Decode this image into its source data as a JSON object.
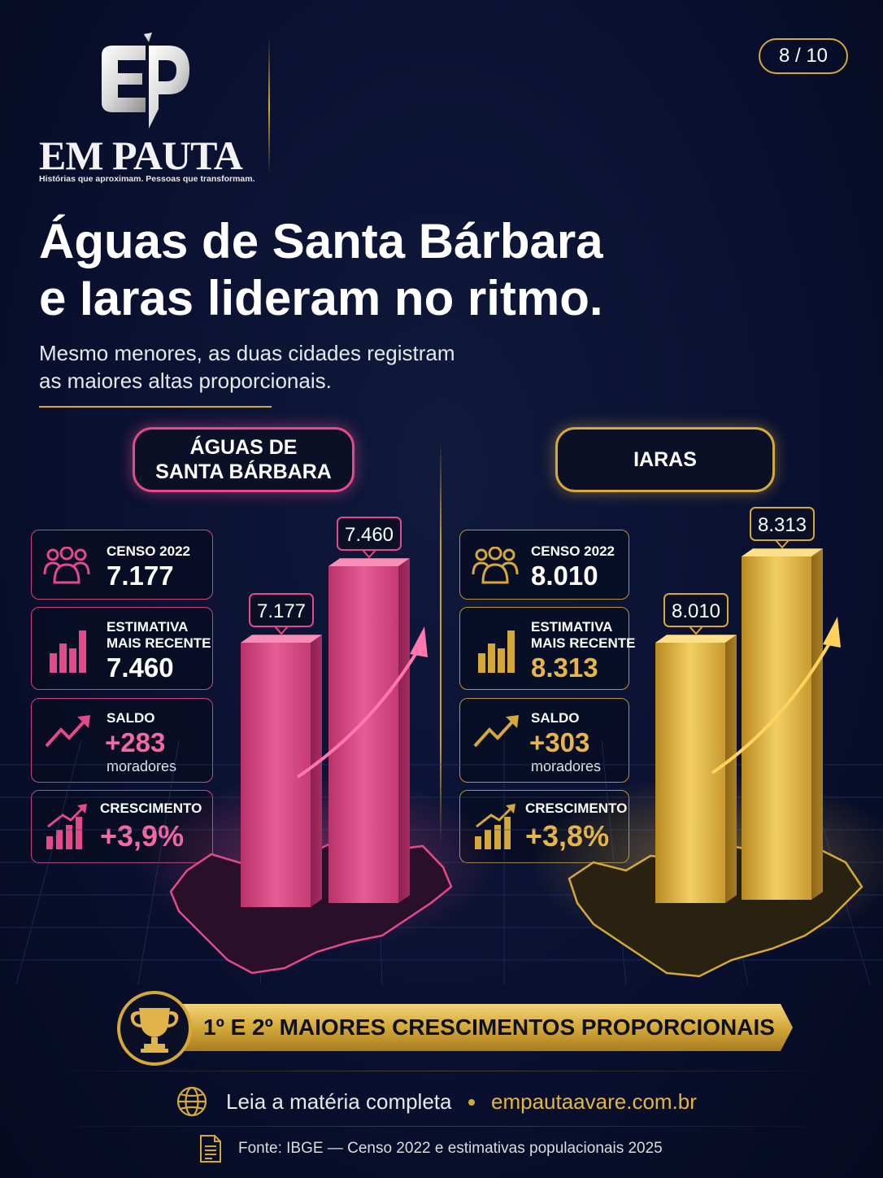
{
  "brand": {
    "name": "EM PAUTA",
    "tagline": "Histórias que aproximam. Pessoas que transformam."
  },
  "page_indicator": "8 / 10",
  "headline": {
    "line1": "Águas de Santa Bárbara",
    "line2": "e Iaras lideram no ritmo."
  },
  "subheadline": {
    "line1": "Mesmo menores, as duas cidades registram",
    "line2": "as maiores altas proporcionais."
  },
  "cities": [
    {
      "name_line1": "ÁGUAS DE",
      "name_line2": "SANTA BÁRBARA",
      "accent": "#e24a8a",
      "censo_label": "CENSO 2022",
      "censo_value": "7.177",
      "estimate_label_line1": "ESTIMATIVA",
      "estimate_label_line2": "MAIS RECENTE",
      "estimate_value": "7.460",
      "saldo_label": "SALDO",
      "saldo_value": "+283",
      "saldo_unit": "moradores",
      "growth_label": "CRESCIMENTO",
      "growth_value": "+3,9%"
    },
    {
      "name_line1": "IARAS",
      "name_line2": "",
      "accent": "#d4a93a",
      "censo_label": "CENSO 2022",
      "censo_value": "8.010",
      "estimate_label_line1": "ESTIMATIVA",
      "estimate_label_line2": "MAIS RECENTE",
      "estimate_value": "8.313",
      "saldo_label": "SALDO",
      "saldo_value": "+303",
      "saldo_unit": "moradores",
      "growth_label": "CRESCIMENTO",
      "growth_value": "+3,8%"
    }
  ],
  "chart_data": [
    {
      "type": "bar",
      "categories": [
        "Censo 2022",
        "Estimativa mais recente"
      ],
      "values": [
        7177,
        7460
      ],
      "data_labels": [
        "7.177",
        "7.460"
      ],
      "title": "ÁGUAS DE SANTA BÁRBARA",
      "color": "#e24a8a",
      "grid": false
    },
    {
      "type": "bar",
      "categories": [
        "Censo 2022",
        "Estimativa mais recente"
      ],
      "values": [
        8010,
        8313
      ],
      "data_labels": [
        "8.010",
        "8.313"
      ],
      "title": "IARAS",
      "color": "#d4a93a",
      "grid": false
    }
  ],
  "banner": {
    "text": "1º E 2º MAIORES CRESCIMENTOS PROPORCIONAIS"
  },
  "footer": {
    "read_more": "Leia a matéria completa",
    "site": "empautaavare.com.br",
    "source": "Fonte: IBGE — Censo 2022 e estimativas populacionais 2025"
  },
  "icons": {
    "people": "people-icon",
    "bars": "bar-chart-icon",
    "trend": "trend-up-icon",
    "growth": "growth-chart-icon",
    "trophy": "trophy-icon",
    "globe": "globe-icon",
    "doc": "document-icon"
  },
  "colors": {
    "background": "#0a1030",
    "pink": "#e24a8a",
    "gold": "#d4a93a"
  }
}
